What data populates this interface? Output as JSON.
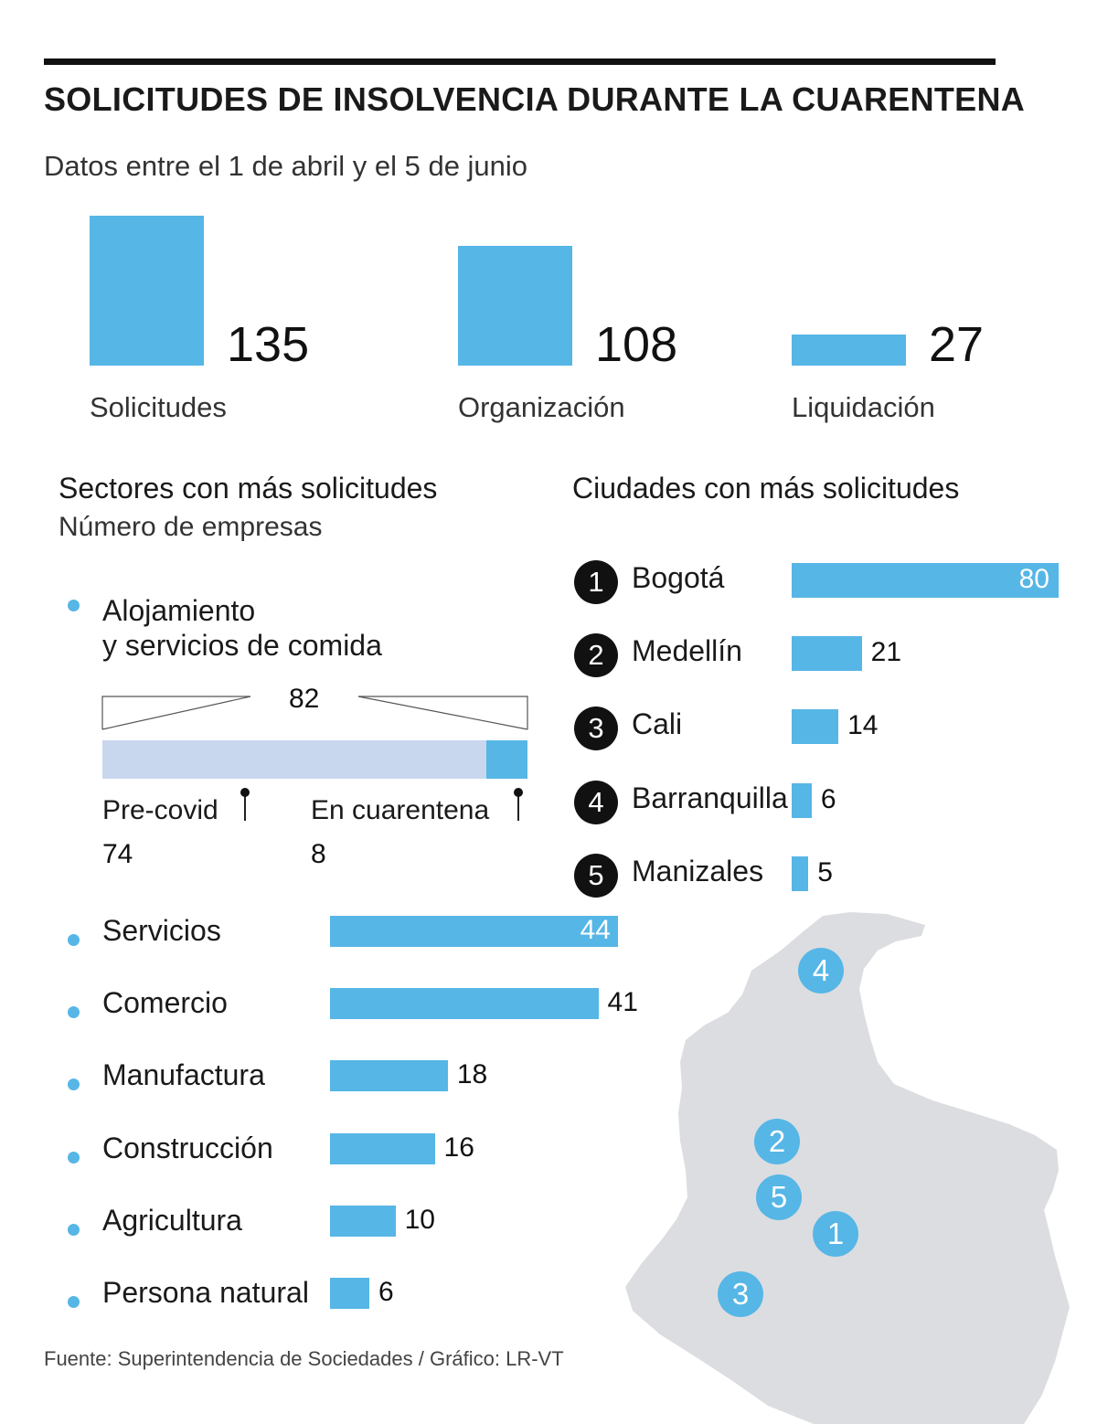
{
  "title": "SOLICITUDES DE INSOLVENCIA DURANTE LA CUARENTENA",
  "subtitle": "Datos entre el 1 de abril y el 5 de junio",
  "source": "Fuente: Superintendencia de Sociedades / Gráfico: LR-VT",
  "colors": {
    "bar": "#56b6e6",
    "bar_light": "#c8d7ee",
    "map": "#dcdde0",
    "text": "#1a1a1a"
  },
  "chart_data": [
    {
      "type": "bar",
      "categories": [
        "Solicitudes",
        "Organización",
        "Liquidación"
      ],
      "values": [
        135,
        108,
        27
      ]
    },
    {
      "type": "bar",
      "title": "Sectores con más solicitudes",
      "subtitle": "Número de empresas",
      "highlight": {
        "category": "Alojamiento y servicios de comida",
        "line1": "Alojamiento",
        "line2": "y servicios de comida",
        "total": 82,
        "parts": [
          {
            "name": "Pre-covid",
            "value": 74
          },
          {
            "name": "En cuarentena",
            "value": 8
          }
        ]
      },
      "categories": [
        "Servicios",
        "Comercio",
        "Manufactura",
        "Construcción",
        "Agricultura",
        "Persona natural"
      ],
      "values": [
        44,
        41,
        18,
        16,
        10,
        6
      ]
    },
    {
      "type": "bar",
      "title": "Ciudades con más solicitudes",
      "ranks": [
        "1",
        "2",
        "3",
        "4",
        "5"
      ],
      "categories": [
        "Bogotá",
        "Medellín",
        "Cali",
        "Barranquilla",
        "Manizales"
      ],
      "values": [
        80,
        21,
        14,
        6,
        5
      ]
    }
  ],
  "map_markers": [
    "4",
    "2",
    "5",
    "1",
    "3"
  ]
}
